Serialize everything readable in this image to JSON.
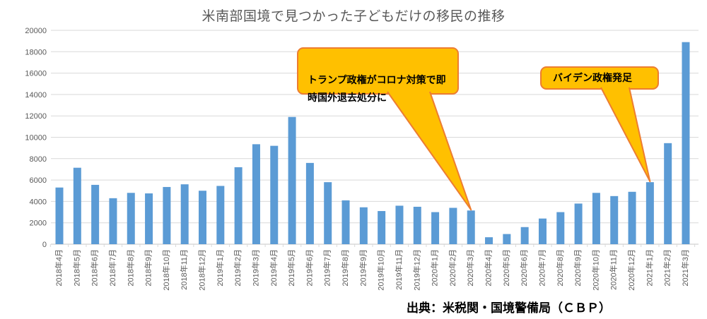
{
  "chart_data": {
    "type": "bar",
    "title": "米南部国境で見つかった子どもだけの移民の推移",
    "source_note": "出典：米税関・国境警備局（ＣＢＰ）",
    "xlabel": "",
    "ylabel": "",
    "ylim": [
      0,
      20000
    ],
    "ytick_step": 2000,
    "grid": true,
    "legend": false,
    "bar_color": "#5B9BD5",
    "gridline_color": "#D9D9D9",
    "axis_line_color": "#C6C6C6",
    "axis_text_color": "#595959",
    "title_color": "#595959",
    "categories": [
      "2018年4月",
      "2018年5月",
      "2018年6月",
      "2018年7月",
      "2018年8月",
      "2018年9月",
      "2018年10月",
      "2018年11月",
      "2018年12月",
      "2019年1月",
      "2019年2月",
      "2019年3月",
      "2019年4月",
      "2019年5月",
      "2019年6月",
      "2019年7月",
      "2019年8月",
      "2019年9月",
      "2019年10月",
      "2019年11月",
      "2019年12月",
      "2020年1月",
      "2020年2月",
      "2020年3月",
      "2020年4月",
      "2020年5月",
      "2020年6月",
      "2020年7月",
      "2020年8月",
      "2020年9月",
      "2020年10月",
      "2020年11月",
      "2020年12月",
      "2021年1月",
      "2021年2月",
      "2021年3月"
    ],
    "values": [
      5300,
      7150,
      5550,
      4300,
      4800,
      4750,
      5350,
      5600,
      5000,
      5450,
      7200,
      9350,
      9200,
      11900,
      7600,
      5800,
      4100,
      3450,
      3100,
      3600,
      3500,
      3000,
      3400,
      3150,
      650,
      950,
      1600,
      2400,
      3000,
      3800,
      4800,
      4500,
      4900,
      5800,
      9450,
      18900
    ],
    "annotations": [
      {
        "text": "トランプ政権がコロナ対策で即\n時国外退去処分に",
        "target_category": "2020年3月",
        "fill": "#FFC000",
        "border_color": "#ED7D31"
      },
      {
        "text": "バイデン政権発足",
        "target_category": "2021年1月",
        "fill": "#FFC000",
        "border_color": "#ED7D31"
      }
    ]
  }
}
